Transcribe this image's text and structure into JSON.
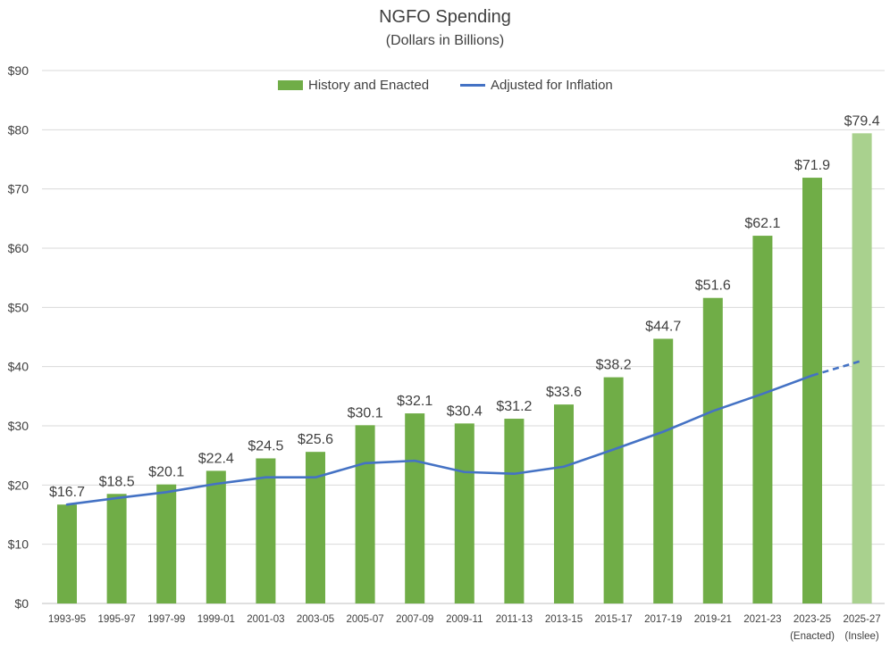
{
  "chart_data": {
    "type": "bar",
    "title": "NGFO Spending",
    "subtitle": "(Dollars in Billions)",
    "categories": [
      "1993-95",
      "1995-97",
      "1997-99",
      "1999-01",
      "2001-03",
      "2003-05",
      "2005-07",
      "2007-09",
      "2009-11",
      "2011-13",
      "2013-15",
      "2015-17",
      "2017-19",
      "2019-21",
      "2021-23",
      "2023-25",
      "2025-27"
    ],
    "category_sublabels": [
      "",
      "",
      "",
      "",
      "",
      "",
      "",
      "",
      "",
      "",
      "",
      "",
      "",
      "",
      "",
      "(Enacted)",
      "(Inslee)"
    ],
    "ylim": [
      0,
      90
    ],
    "yticks": [
      0,
      10,
      20,
      30,
      40,
      50,
      60,
      70,
      80,
      90
    ],
    "ytick_labels": [
      "$0",
      "$10",
      "$20",
      "$30",
      "$40",
      "$50",
      "$60",
      "$70",
      "$80",
      "$90"
    ],
    "grid": true,
    "legend_position": "top",
    "series": [
      {
        "name": "History and Enacted",
        "type": "bar",
        "color": "#70ad47",
        "highlight_color": "#a9d18e",
        "highlight_index": 16,
        "values": [
          16.7,
          18.5,
          20.1,
          22.4,
          24.5,
          25.6,
          30.1,
          32.1,
          30.4,
          31.2,
          33.6,
          38.2,
          44.7,
          51.6,
          62.1,
          71.9,
          79.4
        ],
        "data_labels": [
          "$16.7",
          "$18.5",
          "$20.1",
          "$22.4",
          "$24.5",
          "$25.6",
          "$30.1",
          "$32.1",
          "$30.4",
          "$31.2",
          "$33.6",
          "$38.2",
          "$44.7",
          "$51.6",
          "$62.1",
          "$71.9",
          "$79.4"
        ]
      },
      {
        "name": "Adjusted for Inflation",
        "type": "line",
        "color": "#4472c4",
        "dashed_from_index": 15,
        "values": [
          16.7,
          17.8,
          18.8,
          20.2,
          21.3,
          21.3,
          23.7,
          24.1,
          22.2,
          21.9,
          23.1,
          26.0,
          29.0,
          32.5,
          35.4,
          38.5,
          41.0
        ]
      }
    ]
  }
}
